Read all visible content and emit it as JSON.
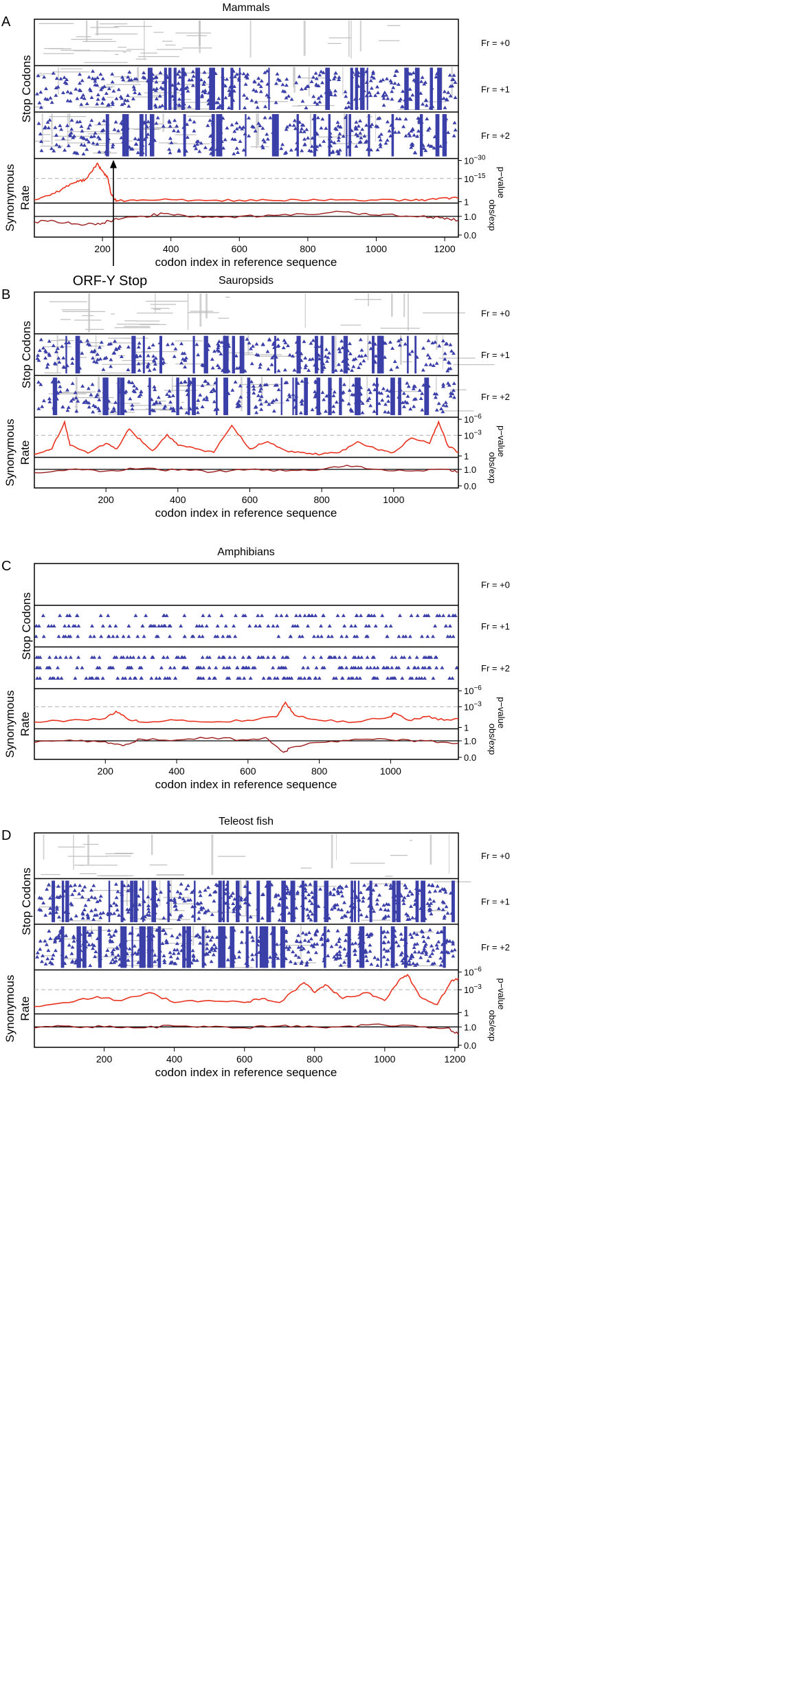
{
  "figure": {
    "row_labels": [
      "Fr = +0",
      "Fr = +1",
      "Fr = +2"
    ],
    "stop_codons_label": "Stop Codons",
    "synonymous_label_line1": "Synonymous",
    "synonymous_label_line2": "Rate",
    "pvalue_label": "p−value",
    "obsexp_label": "obs/exp",
    "x_axis_label": "codon index in reference sequence",
    "colors": {
      "stop_codon": "#3b3fa8",
      "gap": "#bdbdbd",
      "pvalue_line": "#e8321e",
      "obsexp_line": "#9b1c1c",
      "threshold": "#b0b0b0"
    }
  },
  "chart_data": [
    {
      "type": "line",
      "panel_letter": "A",
      "title": "Mammals",
      "xlim": [
        1,
        1240
      ],
      "x_ticks": [
        200,
        400,
        600,
        800,
        1000,
        1200
      ],
      "pvalue_ticks": [
        {
          "label": "10",
          "exp": "−30"
        },
        {
          "label": "10",
          "exp": "−15"
        },
        {
          "label": "1",
          "exp": ""
        }
      ],
      "obsexp_ticks": [
        "1.0",
        "0.0"
      ],
      "annotation": {
        "text": "ORF-Y Stop",
        "x": 232
      },
      "series": [
        {
          "values_x": [
            1,
            40,
            80,
            110,
            130,
            150,
            170,
            185,
            195,
            205,
            215,
            225,
            235,
            245,
            300,
            400,
            500,
            600,
            700,
            800,
            900,
            1000,
            1100,
            1150,
            1200,
            1240
          ],
          "values_y": [
            0.05,
            0.15,
            0.3,
            0.45,
            0.5,
            0.55,
            0.75,
            0.95,
            0.8,
            0.7,
            0.6,
            0.2,
            0.05,
            0.02,
            0.03,
            0.05,
            0.03,
            0.04,
            0.03,
            0.03,
            0.05,
            0.04,
            0.03,
            0.05,
            0.1,
            0.08
          ]
        },
        {
          "values_x": [
            1,
            60,
            120,
            180,
            220,
            260,
            320,
            380,
            440,
            520,
            600,
            700,
            800,
            900,
            960,
            1020,
            1100,
            1160,
            1200,
            1240
          ],
          "values_y": [
            0.7,
            0.75,
            0.6,
            0.55,
            0.75,
            0.9,
            1.0,
            1.15,
            1.05,
            0.95,
            1.0,
            1.05,
            1.1,
            1.25,
            1.15,
            1.1,
            1.0,
            0.95,
            0.85,
            0.8
          ]
        }
      ]
    },
    {
      "type": "line",
      "panel_letter": "B",
      "title": "Sauropsids",
      "xlim": [
        1,
        1180
      ],
      "x_ticks": [
        200,
        400,
        600,
        800,
        1000
      ],
      "pvalue_ticks": [
        {
          "label": "10",
          "exp": "−6"
        },
        {
          "label": "10",
          "exp": "−3"
        },
        {
          "label": "1",
          "exp": ""
        }
      ],
      "obsexp_ticks": [
        "1.0",
        "0.0"
      ],
      "annotation": null,
      "series": [
        {
          "values_x": [
            1,
            50,
            85,
            100,
            150,
            200,
            230,
            265,
            300,
            330,
            370,
            400,
            450,
            500,
            550,
            600,
            650,
            700,
            750,
            800,
            850,
            900,
            950,
            1000,
            1050,
            1100,
            1125,
            1150,
            1180
          ],
          "values_y": [
            0.05,
            0.2,
            0.95,
            0.3,
            0.08,
            0.35,
            0.2,
            0.75,
            0.4,
            0.15,
            0.6,
            0.3,
            0.2,
            0.1,
            0.85,
            0.2,
            0.4,
            0.15,
            0.1,
            0.05,
            0.1,
            0.4,
            0.2,
            0.1,
            0.5,
            0.35,
            0.95,
            0.3,
            0.1
          ]
        },
        {
          "values_x": [
            1,
            100,
            200,
            300,
            400,
            500,
            600,
            700,
            800,
            870,
            950,
            1050,
            1150,
            1180
          ],
          "values_y": [
            0.8,
            1.0,
            0.9,
            1.05,
            0.95,
            0.85,
            1.0,
            0.9,
            1.0,
            1.25,
            1.0,
            0.9,
            1.0,
            0.85
          ]
        }
      ]
    },
    {
      "type": "line",
      "panel_letter": "C",
      "title": "Amphibians",
      "xlim": [
        1,
        1190
      ],
      "x_ticks": [
        200,
        400,
        600,
        800,
        1000
      ],
      "pvalue_ticks": [
        {
          "label": "10",
          "exp": "−6"
        },
        {
          "label": "10",
          "exp": "−3"
        },
        {
          "label": "1",
          "exp": ""
        }
      ],
      "obsexp_ticks": [
        "1.0",
        "0.0"
      ],
      "annotation": null,
      "series": [
        {
          "values_x": [
            1,
            100,
            200,
            230,
            260,
            300,
            400,
            500,
            600,
            680,
            705,
            730,
            800,
            900,
            1000,
            1010,
            1050,
            1100,
            1150,
            1190
          ],
          "values_y": [
            0.15,
            0.2,
            0.25,
            0.45,
            0.25,
            0.15,
            0.2,
            0.15,
            0.2,
            0.3,
            0.7,
            0.35,
            0.2,
            0.15,
            0.3,
            0.4,
            0.2,
            0.3,
            0.2,
            0.25
          ]
        },
        {
          "values_x": [
            1,
            100,
            200,
            250,
            300,
            400,
            500,
            600,
            650,
            700,
            720,
            800,
            900,
            1000,
            1100,
            1190
          ],
          "values_y": [
            0.9,
            1.05,
            0.95,
            0.7,
            1.1,
            1.05,
            1.2,
            1.05,
            1.2,
            0.3,
            0.6,
            0.9,
            1.1,
            1.05,
            1.0,
            0.85
          ]
        }
      ]
    },
    {
      "type": "line",
      "panel_letter": "D",
      "title": "Teleost fish",
      "xlim": [
        1,
        1210
      ],
      "x_ticks": [
        200,
        400,
        600,
        800,
        1000,
        1200
      ],
      "pvalue_ticks": [
        {
          "label": "10",
          "exp": "−6"
        },
        {
          "label": "10",
          "exp": "−3"
        },
        {
          "label": "1",
          "exp": ""
        }
      ],
      "obsexp_ticks": [
        "1.0",
        "0.0"
      ],
      "annotation": null,
      "series": [
        {
          "values_x": [
            1,
            100,
            180,
            250,
            330,
            400,
            500,
            600,
            650,
            700,
            770,
            800,
            830,
            880,
            950,
            1000,
            1040,
            1065,
            1100,
            1150,
            1190,
            1210
          ],
          "values_y": [
            0.15,
            0.25,
            0.4,
            0.3,
            0.5,
            0.25,
            0.3,
            0.25,
            0.35,
            0.25,
            0.75,
            0.5,
            0.7,
            0.35,
            0.5,
            0.3,
            0.8,
            0.95,
            0.4,
            0.2,
            0.8,
            0.85
          ]
        },
        {
          "values_x": [
            1,
            100,
            200,
            300,
            400,
            500,
            600,
            700,
            800,
            900,
            1000,
            1100,
            1180,
            1210
          ],
          "values_y": [
            0.95,
            1.05,
            1.0,
            0.95,
            1.05,
            1.0,
            0.95,
            1.05,
            1.0,
            1.05,
            1.1,
            1.0,
            0.95,
            0.6
          ]
        }
      ]
    }
  ]
}
